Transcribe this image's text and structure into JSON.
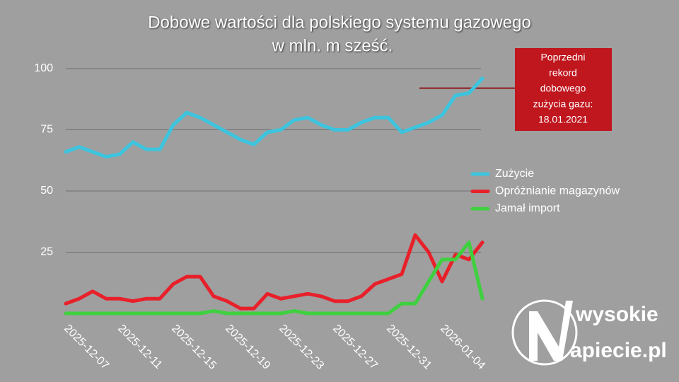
{
  "chart_data": {
    "type": "line",
    "title": "Dobowe wartości dla polskiego systemu gazowego",
    "subtitle": "w mln. m sześć.",
    "x": [
      "2025-12-07",
      "2025-12-08",
      "2025-12-09",
      "2025-12-10",
      "2025-12-11",
      "2025-12-12",
      "2025-12-13",
      "2025-12-14",
      "2025-12-15",
      "2025-12-16",
      "2025-12-17",
      "2025-12-18",
      "2025-12-19",
      "2025-12-20",
      "2025-12-21",
      "2025-12-22",
      "2025-12-23",
      "2025-12-24",
      "2025-12-25",
      "2025-12-26",
      "2025-12-27",
      "2025-12-28",
      "2025-12-29",
      "2025-12-30",
      "2025-12-31",
      "2026-01-01",
      "2026-01-02",
      "2026-01-03",
      "2026-01-04",
      "2026-01-05",
      "2026-01-06",
      "2026-01-07"
    ],
    "xticks": [
      "2025-12-07",
      "2025-12-11",
      "2025-12-15",
      "2025-12-19",
      "2025-12-23",
      "2025-12-27",
      "2025-12-31",
      "2026-01-04"
    ],
    "ylim": [
      0,
      100
    ],
    "yticks": [
      25,
      50,
      75,
      100
    ],
    "grid": true,
    "legend": "right",
    "series": [
      {
        "name": "Zużycie",
        "color": "#3cc4de",
        "values": [
          66,
          68,
          66,
          64,
          65,
          70,
          67,
          67,
          77,
          82,
          80,
          77,
          74,
          71,
          69,
          74,
          75,
          79,
          80,
          77,
          75,
          75,
          78,
          80,
          80,
          74,
          76,
          78,
          81,
          89,
          90,
          96
        ]
      },
      {
        "name": "Opróżnianie magazynów",
        "color": "#e8202a",
        "values": [
          4,
          6,
          9,
          6,
          6,
          5,
          6,
          6,
          12,
          15,
          15,
          7,
          5,
          2,
          2,
          8,
          6,
          7,
          8,
          7,
          5,
          5,
          7,
          12,
          14,
          16,
          32,
          25,
          13,
          24,
          22,
          29
        ]
      },
      {
        "name": "Jamał import",
        "color": "#3fd03f",
        "values": [
          0,
          0,
          0,
          0,
          0,
          0,
          0,
          0,
          0,
          0,
          0,
          1,
          0,
          0,
          0,
          0,
          0,
          1,
          0,
          0,
          0,
          0,
          0,
          0,
          0,
          4,
          4,
          13,
          22,
          22,
          29,
          6
        ]
      }
    ],
    "annotation": {
      "lines": [
        "Poprzedni",
        "rekord",
        "dobowego",
        "zużycia gazu:",
        "18.01.2021"
      ],
      "value": 92,
      "color": "#c0161e"
    },
    "logo": [
      "wysokie",
      "apiecie.pl"
    ]
  }
}
